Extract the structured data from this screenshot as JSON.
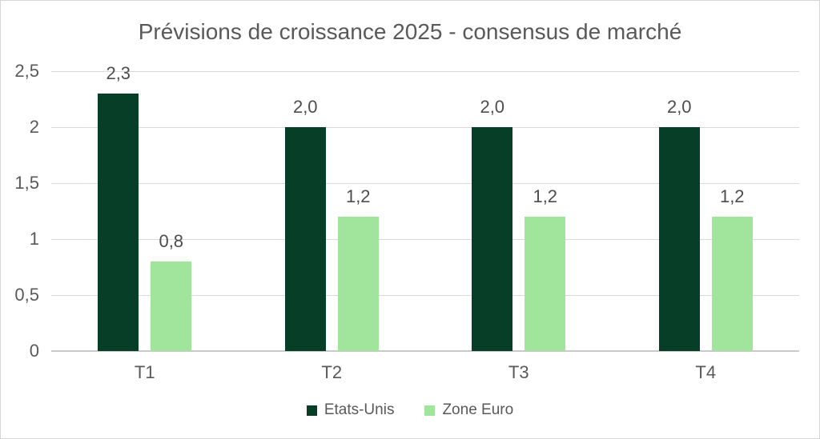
{
  "chart_data": {
    "type": "bar",
    "title": "Prévisions de croissance 2025 - consensus de marché",
    "categories": [
      "T1",
      "T2",
      "T3",
      "T4"
    ],
    "series": [
      {
        "name": "Etats-Unis",
        "color": "#073e27",
        "values": [
          2.3,
          2.0,
          2.0,
          2.0
        ],
        "data_labels": [
          "2,3",
          "2,0",
          "2,0",
          "2,0"
        ]
      },
      {
        "name": "Zone Euro",
        "color": "#a0e59b",
        "values": [
          0.8,
          1.2,
          1.2,
          1.2
        ],
        "data_labels": [
          "0,8",
          "1,2",
          "1,2",
          "1,2"
        ]
      }
    ],
    "ylim": [
      0,
      2.5
    ],
    "y_ticks": [
      {
        "value": 0,
        "label": "0"
      },
      {
        "value": 0.5,
        "label": "0,5"
      },
      {
        "value": 1,
        "label": "1"
      },
      {
        "value": 1.5,
        "label": "1,5"
      },
      {
        "value": 2,
        "label": "2"
      },
      {
        "value": 2.5,
        "label": "2,5"
      }
    ],
    "grid": true,
    "legend_position": "bottom",
    "colors": {
      "grid": "#d9d9d9",
      "axis_line": "#c9c9c9",
      "title_text": "#595959",
      "tick_text": "#595959",
      "value_text": "#4d4d4d",
      "legend_text": "#595959",
      "background": "#ffffff",
      "frame_border": "#d7d7d7"
    }
  }
}
